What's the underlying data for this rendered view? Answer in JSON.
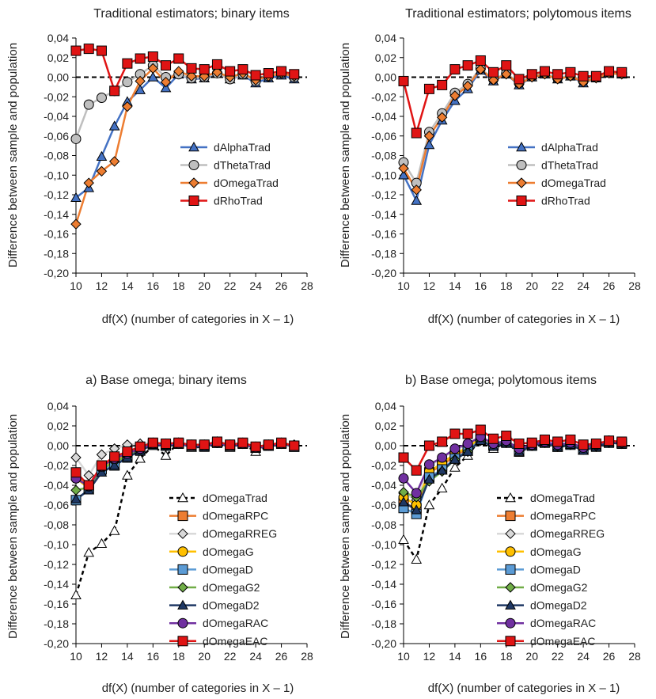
{
  "colors": {
    "alpha": "#4472C4",
    "theta": "#BFBFBF",
    "omega": "#ED7D31",
    "rho": "#E01414",
    "trad": "#FFFFFF",
    "rpc": "#ED7D31",
    "rreg": "#D9D9D9",
    "g": "#FFC000",
    "d": "#5B9BD5",
    "g2": "#70AD47",
    "d2": "#1F3864",
    "rac": "#7030A0",
    "eac": "#E01414",
    "ref": "#000000"
  },
  "chart_data": [
    {
      "type": "line",
      "title": "Traditional estimators; binary items",
      "xlabel": "df(X) (number of categories in X – 1)",
      "ylabel": "Difference between sample and population",
      "xlim": [
        10,
        28
      ],
      "ylim": [
        -0.2,
        0.04
      ],
      "xticks": [
        "10",
        "12",
        "14",
        "16",
        "18",
        "20",
        "22",
        "24",
        "26",
        "28"
      ],
      "yticks": [
        "0,04",
        "0,02",
        "0,00",
        "-0,02",
        "-0,04",
        "-0,06",
        "-0,08",
        "-0,10",
        "-0,12",
        "-0,14",
        "-0,16",
        "-0,18",
        "-0,20"
      ],
      "legend_position": "middle-right",
      "x": [
        10,
        11,
        12,
        13,
        14,
        15,
        16,
        17,
        18,
        19,
        20,
        21,
        22,
        23,
        24,
        25,
        26,
        27
      ],
      "series": [
        {
          "name": "dAlphaTrad",
          "color_key": "alpha",
          "marker": "triangle",
          "dashed": false,
          "values": [
            -0.123,
            -0.113,
            -0.081,
            -0.05,
            -0.025,
            -0.013,
            0.0,
            -0.011,
            0.003,
            -0.002,
            -0.001,
            0.004,
            -0.002,
            0.002,
            -0.006,
            -0.001,
            0.002,
            -0.002
          ]
        },
        {
          "name": "dThetaTrad",
          "color_key": "theta",
          "marker": "circle",
          "dashed": false,
          "values": [
            -0.063,
            -0.028,
            -0.021,
            -0.014,
            -0.005,
            0.003,
            0.012,
            0.0,
            0.003,
            -0.001,
            0.0,
            0.004,
            -0.002,
            0.003,
            -0.004,
            0.001,
            0.004,
            0.0
          ]
        },
        {
          "name": "dOmegaTrad",
          "color_key": "omega",
          "marker": "diamond",
          "dashed": false,
          "values": [
            -0.15,
            -0.108,
            -0.096,
            -0.086,
            -0.03,
            -0.004,
            0.009,
            -0.005,
            0.006,
            0.001,
            0.001,
            0.005,
            0.0,
            0.004,
            -0.003,
            0.001,
            0.004,
            0.001
          ]
        },
        {
          "name": "dRhoTrad",
          "color_key": "rho",
          "marker": "square",
          "dashed": false,
          "values": [
            0.027,
            0.029,
            0.027,
            -0.014,
            0.014,
            0.019,
            0.021,
            0.012,
            0.019,
            0.009,
            0.008,
            0.013,
            0.006,
            0.008,
            0.002,
            0.004,
            0.006,
            0.003
          ]
        }
      ]
    },
    {
      "type": "line",
      "title": "Traditional estimators; polytomous items",
      "xlabel": "df(X) (number of categories in X – 1)",
      "ylabel": "Difference between sample and population",
      "xlim": [
        10,
        28
      ],
      "ylim": [
        -0.2,
        0.04
      ],
      "xticks": [
        "10",
        "12",
        "14",
        "16",
        "18",
        "20",
        "22",
        "24",
        "26",
        "28"
      ],
      "yticks": [
        "0,04",
        "0,02",
        "0,00",
        "-0,02",
        "-0,04",
        "-0,06",
        "-0,08",
        "-0,10",
        "-0,12",
        "-0,14",
        "-0,16",
        "-0,18",
        "-0,20"
      ],
      "legend_position": "middle-right",
      "x": [
        10,
        11,
        12,
        13,
        14,
        15,
        16,
        17,
        18,
        19,
        20,
        21,
        22,
        23,
        24,
        25,
        26,
        27
      ],
      "series": [
        {
          "name": "dAlphaTrad",
          "color_key": "alpha",
          "marker": "triangle",
          "dashed": false,
          "values": [
            -0.1,
            -0.126,
            -0.069,
            -0.044,
            -0.024,
            -0.012,
            0.007,
            -0.004,
            0.003,
            -0.008,
            0.0,
            0.003,
            -0.002,
            0.001,
            -0.006,
            -0.001,
            0.004,
            0.003
          ]
        },
        {
          "name": "dThetaTrad",
          "color_key": "theta",
          "marker": "circle",
          "dashed": false,
          "values": [
            -0.087,
            -0.108,
            -0.056,
            -0.037,
            -0.016,
            -0.007,
            0.009,
            -0.002,
            0.004,
            -0.006,
            0.001,
            0.004,
            -0.001,
            0.002,
            -0.004,
            0.0,
            0.005,
            0.004
          ]
        },
        {
          "name": "dOmegaTrad",
          "color_key": "omega",
          "marker": "diamond",
          "dashed": false,
          "values": [
            -0.093,
            -0.115,
            -0.06,
            -0.041,
            -0.019,
            -0.009,
            0.008,
            -0.003,
            0.003,
            -0.007,
            0.0,
            0.003,
            -0.002,
            0.001,
            -0.005,
            -0.001,
            0.004,
            0.003
          ]
        },
        {
          "name": "dRhoTrad",
          "color_key": "rho",
          "marker": "square",
          "dashed": false,
          "values": [
            -0.004,
            -0.057,
            -0.012,
            -0.008,
            0.008,
            0.012,
            0.017,
            0.005,
            0.012,
            -0.002,
            0.003,
            0.006,
            0.003,
            0.005,
            0.001,
            0.001,
            0.006,
            0.005
          ]
        }
      ]
    },
    {
      "type": "line",
      "title": "a) Base omega; binary items",
      "xlabel": "df(X) (number of categories in X – 1)",
      "ylabel": "Difference between sample and population",
      "xlim": [
        10,
        28
      ],
      "ylim": [
        -0.2,
        0.04
      ],
      "xticks": [
        "10",
        "12",
        "14",
        "16",
        "18",
        "20",
        "22",
        "24",
        "26",
        "28"
      ],
      "yticks": [
        "0,04",
        "0,02",
        "0,00",
        "-0,02",
        "-0,04",
        "-0,06",
        "-0,08",
        "-0,10",
        "-0,12",
        "-0,14",
        "-0,16",
        "-0,18",
        "-0,20"
      ],
      "legend_position": "lower-right",
      "x": [
        10,
        11,
        12,
        13,
        14,
        15,
        16,
        17,
        18,
        19,
        20,
        21,
        22,
        23,
        24,
        25,
        26,
        27
      ],
      "series": [
        {
          "name": "dOmegaTrad",
          "color_key": "trad",
          "marker": "triangle",
          "dashed": true,
          "values": [
            -0.151,
            -0.108,
            -0.099,
            -0.086,
            -0.03,
            -0.013,
            0.0,
            -0.01,
            0.003,
            -0.002,
            -0.001,
            0.004,
            -0.002,
            0.002,
            -0.006,
            -0.001,
            0.002,
            -0.002
          ]
        },
        {
          "name": "dOmegaRPC",
          "color_key": "rpc",
          "marker": "square",
          "dashed": false,
          "values": [
            -0.03,
            -0.042,
            -0.022,
            -0.014,
            -0.01,
            -0.004,
            0.002,
            0.001,
            0.002,
            0.0,
            0.0,
            0.003,
            0.0,
            0.002,
            -0.002,
            0.0,
            0.002,
            0.0
          ]
        },
        {
          "name": "dOmegaRREG",
          "color_key": "rreg",
          "marker": "diamond",
          "dashed": false,
          "values": [
            -0.012,
            -0.03,
            -0.009,
            -0.003,
            0.001,
            0.002,
            0.003,
            0.002,
            0.003,
            0.001,
            0.001,
            0.004,
            0.001,
            0.003,
            -0.001,
            0.001,
            0.003,
            0.001
          ]
        },
        {
          "name": "dOmegaG",
          "color_key": "g",
          "marker": "circle",
          "dashed": false,
          "values": [
            -0.033,
            -0.043,
            -0.023,
            -0.015,
            -0.01,
            -0.004,
            0.002,
            0.0,
            0.002,
            0.0,
            0.0,
            0.003,
            0.0,
            0.002,
            -0.002,
            0.0,
            0.002,
            0.0
          ]
        },
        {
          "name": "dOmegaD",
          "color_key": "d",
          "marker": "square",
          "dashed": false,
          "values": [
            -0.055,
            -0.044,
            -0.024,
            -0.02,
            -0.012,
            -0.005,
            0.001,
            0.0,
            0.002,
            0.0,
            -0.001,
            0.003,
            0.0,
            0.002,
            -0.002,
            0.0,
            0.002,
            -0.001
          ]
        },
        {
          "name": "dOmegaG2",
          "color_key": "g2",
          "marker": "diamond",
          "dashed": false,
          "values": [
            -0.045,
            -0.042,
            -0.024,
            -0.016,
            -0.011,
            -0.004,
            0.002,
            0.0,
            0.002,
            0.0,
            0.0,
            0.003,
            0.0,
            0.002,
            -0.002,
            0.0,
            0.002,
            0.0
          ]
        },
        {
          "name": "dOmegaD2",
          "color_key": "d2",
          "marker": "triangle",
          "dashed": false,
          "values": [
            -0.054,
            -0.045,
            -0.027,
            -0.02,
            -0.012,
            -0.005,
            0.001,
            0.0,
            0.002,
            -0.001,
            -0.001,
            0.003,
            -0.001,
            0.002,
            -0.003,
            0.0,
            0.002,
            -0.001
          ]
        },
        {
          "name": "dOmegaRAC",
          "color_key": "rac",
          "marker": "circle",
          "dashed": false,
          "values": [
            -0.033,
            -0.041,
            -0.021,
            -0.013,
            -0.008,
            -0.003,
            0.002,
            0.001,
            0.002,
            0.0,
            0.0,
            0.003,
            0.0,
            0.002,
            -0.002,
            0.0,
            0.002,
            0.0
          ]
        },
        {
          "name": "dOmegaEAC",
          "color_key": "eac",
          "marker": "square",
          "dashed": false,
          "values": [
            -0.027,
            -0.04,
            -0.02,
            -0.011,
            -0.006,
            -0.001,
            0.003,
            0.002,
            0.003,
            0.001,
            0.001,
            0.004,
            0.001,
            0.003,
            -0.001,
            0.001,
            0.003,
            0.0
          ]
        }
      ]
    },
    {
      "type": "line",
      "title": "b) Base omega; polytomous items",
      "xlabel": "df(X) (number of categories in X – 1)",
      "ylabel": "Difference between sample and population",
      "xlim": [
        10,
        28
      ],
      "ylim": [
        -0.2,
        0.04
      ],
      "xticks": [
        "10",
        "12",
        "14",
        "16",
        "18",
        "20",
        "22",
        "24",
        "26",
        "28"
      ],
      "yticks": [
        "0,04",
        "0,02",
        "0,00",
        "-0,02",
        "-0,04",
        "-0,06",
        "-0,08",
        "-0,10",
        "-0,12",
        "-0,14",
        "-0,16",
        "-0,18",
        "-0,20"
      ],
      "legend_position": "lower-right",
      "x": [
        10,
        11,
        12,
        13,
        14,
        15,
        16,
        17,
        18,
        19,
        20,
        21,
        22,
        23,
        24,
        25,
        26,
        27
      ],
      "series": [
        {
          "name": "dOmegaTrad",
          "color_key": "trad",
          "marker": "triangle",
          "dashed": true,
          "values": [
            -0.095,
            -0.115,
            -0.06,
            -0.043,
            -0.022,
            -0.01,
            0.007,
            -0.003,
            0.003,
            -0.007,
            0.0,
            0.003,
            -0.002,
            0.001,
            -0.005,
            -0.001,
            0.004,
            0.003
          ]
        },
        {
          "name": "dOmegaRPC",
          "color_key": "rpc",
          "marker": "square",
          "dashed": false,
          "values": [
            -0.058,
            -0.063,
            -0.027,
            -0.02,
            -0.01,
            -0.003,
            0.008,
            0.001,
            0.004,
            -0.004,
            0.001,
            0.004,
            0.0,
            0.002,
            -0.003,
            0.0,
            0.004,
            0.003
          ]
        },
        {
          "name": "dOmegaRREG",
          "color_key": "rreg",
          "marker": "diamond",
          "dashed": false,
          "values": [
            -0.048,
            -0.055,
            -0.02,
            -0.013,
            -0.004,
            0.001,
            0.01,
            0.002,
            0.005,
            -0.003,
            0.001,
            0.004,
            0.001,
            0.003,
            -0.002,
            0.001,
            0.005,
            0.003
          ]
        },
        {
          "name": "dOmegaG",
          "color_key": "g",
          "marker": "circle",
          "dashed": false,
          "values": [
            -0.052,
            -0.06,
            -0.026,
            -0.018,
            -0.008,
            -0.002,
            0.008,
            0.001,
            0.004,
            -0.004,
            0.001,
            0.004,
            0.0,
            0.002,
            -0.003,
            0.0,
            0.004,
            0.003
          ]
        },
        {
          "name": "dOmegaD",
          "color_key": "d",
          "marker": "square",
          "dashed": false,
          "values": [
            -0.063,
            -0.069,
            -0.032,
            -0.024,
            -0.013,
            -0.005,
            0.006,
            0.0,
            0.003,
            -0.005,
            0.0,
            0.003,
            -0.001,
            0.001,
            -0.004,
            -0.001,
            0.003,
            0.002
          ]
        },
        {
          "name": "dOmegaG2",
          "color_key": "g2",
          "marker": "diamond",
          "dashed": false,
          "values": [
            -0.047,
            -0.052,
            -0.036,
            -0.026,
            -0.014,
            -0.006,
            0.005,
            0.0,
            0.003,
            -0.005,
            0.0,
            0.003,
            -0.001,
            0.001,
            -0.004,
            -0.001,
            0.003,
            0.002
          ]
        },
        {
          "name": "dOmegaD2",
          "color_key": "d2",
          "marker": "triangle",
          "dashed": false,
          "values": [
            -0.057,
            -0.065,
            -0.034,
            -0.025,
            -0.014,
            -0.006,
            0.005,
            -0.001,
            0.003,
            -0.006,
            0.0,
            0.003,
            -0.001,
            0.001,
            -0.005,
            -0.001,
            0.003,
            0.002
          ]
        },
        {
          "name": "dOmegaRAC",
          "color_key": "rac",
          "marker": "circle",
          "dashed": false,
          "values": [
            -0.033,
            -0.048,
            -0.019,
            -0.012,
            -0.003,
            0.002,
            0.009,
            0.002,
            0.005,
            -0.003,
            0.001,
            0.004,
            0.001,
            0.003,
            -0.002,
            0.001,
            0.005,
            0.003
          ]
        },
        {
          "name": "dOmegaEAC",
          "color_key": "eac",
          "marker": "square",
          "dashed": false,
          "values": [
            -0.012,
            -0.025,
            0.0,
            0.004,
            0.012,
            0.012,
            0.016,
            0.007,
            0.01,
            0.002,
            0.003,
            0.006,
            0.004,
            0.006,
            0.001,
            0.002,
            0.005,
            0.004
          ]
        }
      ]
    }
  ]
}
